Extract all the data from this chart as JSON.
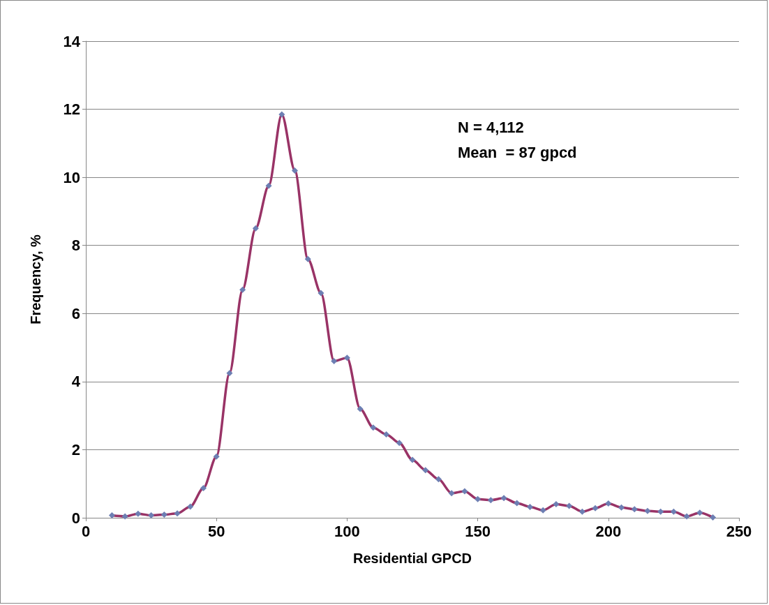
{
  "chart_data": {
    "type": "line",
    "xlabel": "Residential GPCD",
    "ylabel": "Frequency, %",
    "annotations": [
      "N = 4,112",
      "Mean  = 87 gpcd"
    ],
    "x": [
      10,
      15,
      20,
      25,
      30,
      35,
      40,
      45,
      50,
      55,
      60,
      65,
      70,
      75,
      80,
      85,
      90,
      95,
      100,
      105,
      110,
      115,
      120,
      125,
      130,
      135,
      140,
      145,
      150,
      155,
      160,
      165,
      170,
      175,
      180,
      185,
      190,
      195,
      200,
      205,
      210,
      215,
      220,
      225,
      230,
      235,
      240
    ],
    "series": [
      {
        "color": "#993366",
        "values": [
          0.07,
          0.04,
          0.12,
          0.07,
          0.09,
          0.13,
          0.33,
          0.87,
          1.8,
          4.25,
          6.7,
          8.5,
          9.75,
          11.85,
          10.2,
          7.6,
          6.6,
          4.6,
          4.7,
          3.2,
          2.65,
          2.45,
          2.2,
          1.7,
          1.4,
          1.13,
          0.72,
          0.78,
          0.55,
          0.52,
          0.58,
          0.43,
          0.32,
          0.22,
          0.4,
          0.35,
          0.18,
          0.28,
          0.42,
          0.3,
          0.25,
          0.2,
          0.18,
          0.18,
          0.04,
          0.15,
          0.01
        ]
      }
    ],
    "xlim": [
      0,
      250
    ],
    "xticks": [
      0,
      50,
      100,
      150,
      200,
      250
    ],
    "ylim": [
      0,
      14
    ],
    "yticks": [
      0,
      2,
      4,
      6,
      8,
      10,
      12,
      14
    ],
    "grid": "y",
    "marker": "diamond",
    "line_style": "solid"
  }
}
